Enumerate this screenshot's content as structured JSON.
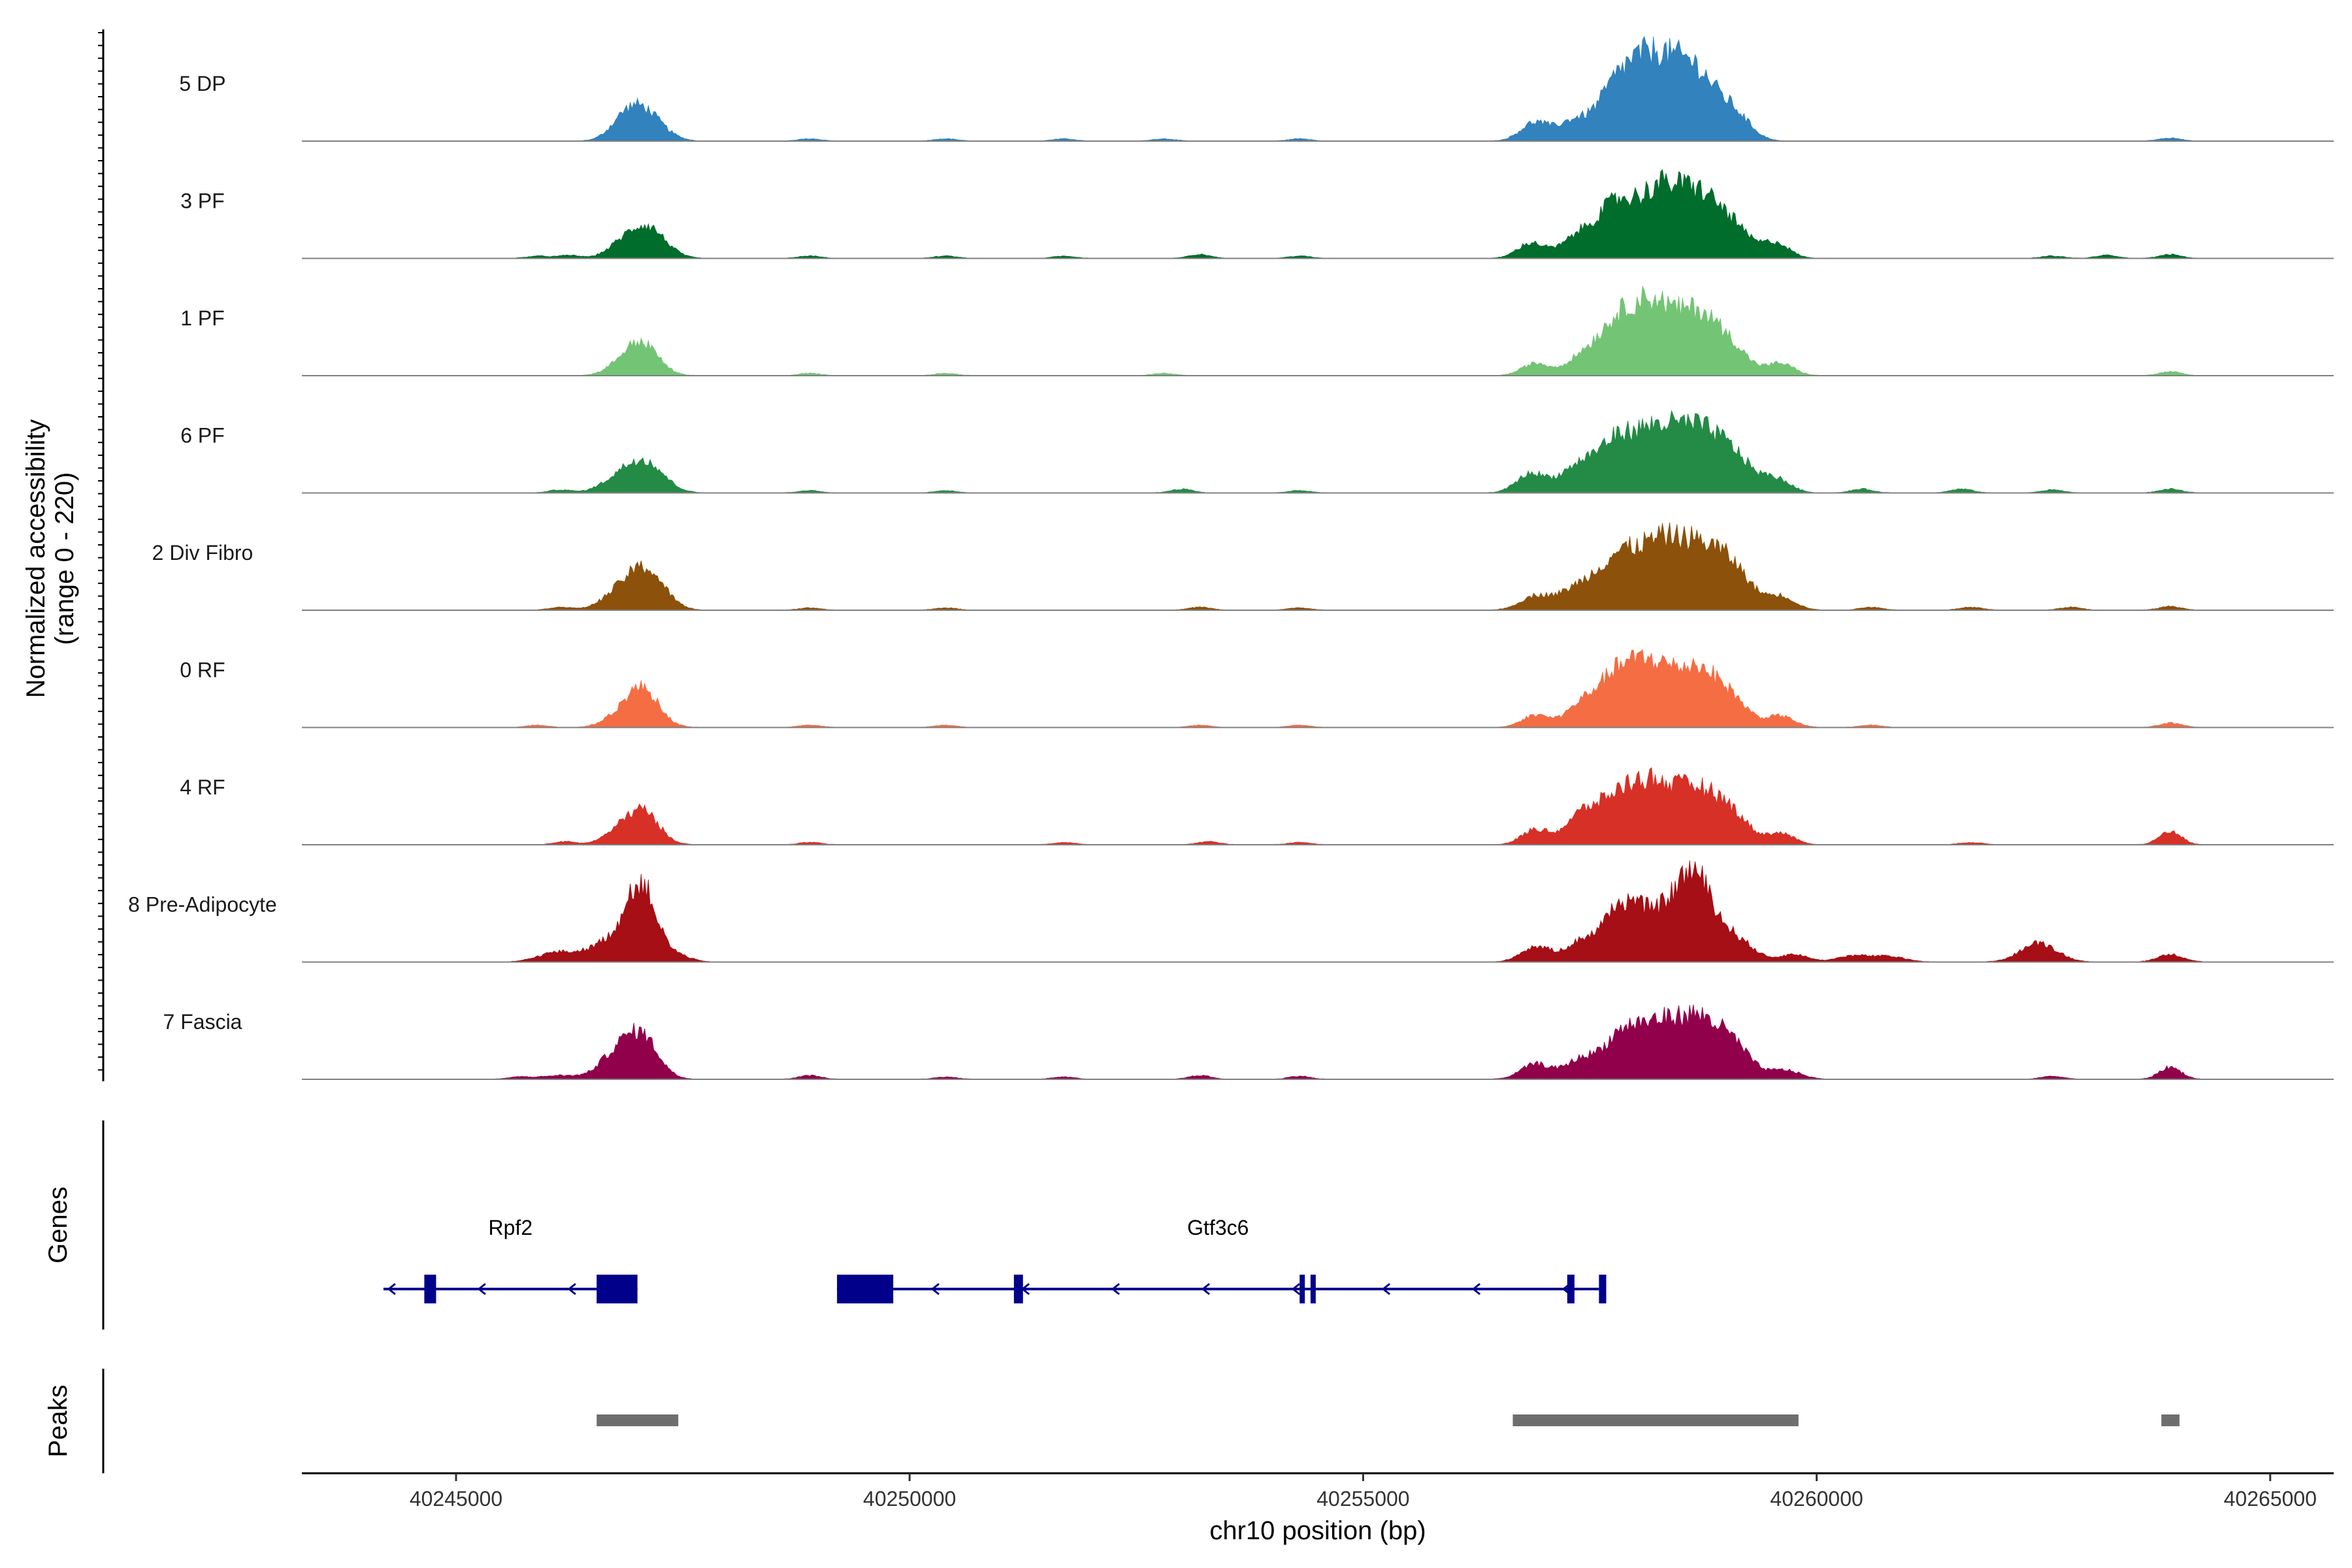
{
  "chart_data": {
    "type": "area",
    "title": "",
    "xlabel": "chr10 position (bp)",
    "ylabel": "Normalized accessibility",
    "ylabel_range": "(range 0 - 220)",
    "ylim": [
      0,
      220
    ],
    "xlim": [
      40243300,
      40265700
    ],
    "x_ticks": [
      40245000,
      40250000,
      40255000,
      40260000,
      40265000
    ],
    "x_tick_labels": [
      "40245000",
      "40250000",
      "40255000",
      "40260000",
      "40265000"
    ],
    "genes_label": "Genes",
    "peaks_label": "Peaks",
    "tracks": [
      {
        "name": "5 DP",
        "color": "#3182BD",
        "peaks": [
          [
            40246800,
            12,
            150
          ],
          [
            40246950,
            18,
            170
          ],
          [
            40247100,
            30,
            200
          ],
          [
            40256900,
            25,
            160
          ],
          [
            40257300,
            22,
            150
          ],
          [
            40257800,
            70,
            230
          ],
          [
            40258200,
            90,
            230
          ],
          [
            40258650,
            90,
            240
          ],
          [
            40259100,
            30,
            180
          ]
        ],
        "small": [
          [
            40248900,
            3
          ],
          [
            40250400,
            3
          ],
          [
            40251700,
            3
          ],
          [
            40252800,
            3
          ],
          [
            40254300,
            3
          ],
          [
            40263900,
            4
          ]
        ]
      },
      {
        "name": "3 PF",
        "color": "#006D2C",
        "peaks": [
          [
            40246800,
            12,
            160
          ],
          [
            40247100,
            42,
            200
          ],
          [
            40256850,
            20,
            150
          ],
          [
            40257400,
            30,
            200
          ],
          [
            40257800,
            65,
            200
          ],
          [
            40258250,
            80,
            220
          ],
          [
            40258700,
            80,
            240
          ],
          [
            40259100,
            30,
            190
          ],
          [
            40259550,
            20,
            150
          ]
        ],
        "small": [
          [
            40245900,
            3
          ],
          [
            40246250,
            4
          ],
          [
            40248900,
            3
          ],
          [
            40250400,
            3
          ],
          [
            40251700,
            3
          ],
          [
            40253200,
            5
          ],
          [
            40254300,
            3
          ],
          [
            40262600,
            3
          ],
          [
            40263200,
            4
          ],
          [
            40263900,
            5
          ]
        ]
      },
      {
        "name": "1 PF",
        "color": "#74C476",
        "peaks": [
          [
            40246800,
            10,
            160
          ],
          [
            40247050,
            42,
            180
          ],
          [
            40256900,
            16,
            150
          ],
          [
            40257400,
            20,
            180
          ],
          [
            40257800,
            65,
            220
          ],
          [
            40258200,
            82,
            220
          ],
          [
            40258700,
            80,
            240
          ],
          [
            40259100,
            25,
            180
          ],
          [
            40259600,
            16,
            150
          ]
        ],
        "small": [
          [
            40248900,
            3
          ],
          [
            40250400,
            3
          ],
          [
            40252800,
            3
          ],
          [
            40263900,
            5
          ]
        ]
      },
      {
        "name": "6 PF",
        "color": "#238B45",
        "peaks": [
          [
            40246800,
            18,
            200
          ],
          [
            40247100,
            38,
            200
          ],
          [
            40256850,
            25,
            160
          ],
          [
            40257350,
            30,
            200
          ],
          [
            40257800,
            65,
            230
          ],
          [
            40258250,
            70,
            230
          ],
          [
            40258700,
            75,
            240
          ],
          [
            40259100,
            40,
            200
          ],
          [
            40259550,
            18,
            160
          ]
        ],
        "small": [
          [
            40246150,
            4
          ],
          [
            40248900,
            3
          ],
          [
            40250400,
            3
          ],
          [
            40253000,
            5
          ],
          [
            40254300,
            3
          ],
          [
            40260500,
            5
          ],
          [
            40261600,
            5
          ],
          [
            40262600,
            4
          ],
          [
            40263900,
            5
          ]
        ]
      },
      {
        "name": "2 Div Fibro",
        "color": "#8C510A",
        "peaks": [
          [
            40246800,
            20,
            200
          ],
          [
            40247100,
            50,
            200
          ],
          [
            40256900,
            18,
            170
          ],
          [
            40257350,
            25,
            200
          ],
          [
            40257800,
            65,
            230
          ],
          [
            40258250,
            70,
            230
          ],
          [
            40258700,
            78,
            260
          ],
          [
            40259100,
            40,
            200
          ],
          [
            40259600,
            18,
            160
          ]
        ],
        "small": [
          [
            40246150,
            4
          ],
          [
            40248900,
            3
          ],
          [
            40250400,
            3
          ],
          [
            40253200,
            4
          ],
          [
            40254300,
            3
          ],
          [
            40260600,
            4
          ],
          [
            40261700,
            4
          ],
          [
            40262800,
            4
          ],
          [
            40263900,
            5
          ]
        ]
      },
      {
        "name": "0 RF",
        "color": "#F46D43",
        "peaks": [
          [
            40246750,
            10,
            160
          ],
          [
            40247050,
            52,
            180
          ],
          [
            40256900,
            16,
            150
          ],
          [
            40257400,
            25,
            180
          ],
          [
            40257800,
            65,
            220
          ],
          [
            40258200,
            70,
            220
          ],
          [
            40258700,
            75,
            240
          ],
          [
            40259100,
            25,
            180
          ],
          [
            40259600,
            15,
            150
          ]
        ],
        "small": [
          [
            40245900,
            3
          ],
          [
            40248900,
            3
          ],
          [
            40250400,
            3
          ],
          [
            40253200,
            3
          ],
          [
            40254300,
            3
          ],
          [
            40260600,
            3
          ],
          [
            40263900,
            6
          ]
        ]
      },
      {
        "name": "4 RF",
        "color": "#D73027",
        "peaks": [
          [
            40246750,
            12,
            160
          ],
          [
            40247050,
            45,
            180
          ],
          [
            40256900,
            20,
            150
          ],
          [
            40257400,
            35,
            180
          ],
          [
            40257800,
            55,
            220
          ],
          [
            40258200,
            70,
            230
          ],
          [
            40258700,
            70,
            240
          ],
          [
            40259100,
            30,
            180
          ],
          [
            40259600,
            15,
            150
          ]
        ],
        "small": [
          [
            40246200,
            4
          ],
          [
            40248900,
            3
          ],
          [
            40251700,
            3
          ],
          [
            40253300,
            4
          ],
          [
            40254300,
            3
          ],
          [
            40261700,
            3
          ],
          [
            40263900,
            18
          ]
        ]
      },
      {
        "name": "8 Pre-Adipocyte",
        "color": "#A50F15",
        "peaks": [
          [
            40246100,
            12,
            200
          ],
          [
            40246750,
            30,
            260
          ],
          [
            40247050,
            90,
            160
          ],
          [
            40247450,
            8,
            140
          ],
          [
            40256900,
            20,
            160
          ],
          [
            40257400,
            25,
            180
          ],
          [
            40257850,
            70,
            200
          ],
          [
            40258250,
            50,
            220
          ],
          [
            40258650,
            110,
            200
          ],
          [
            40259100,
            30,
            200
          ],
          [
            40259750,
            10,
            150
          ],
          [
            40260400,
            8,
            180
          ],
          [
            40260800,
            7,
            180
          ],
          [
            40262450,
            25,
            200
          ],
          [
            40263900,
            10,
            140
          ]
        ],
        "small": []
      },
      {
        "name": "7 Fascia",
        "color": "#91004B",
        "peaks": [
          [
            40246150,
            5,
            200
          ],
          [
            40246750,
            30,
            180
          ],
          [
            40247050,
            55,
            180
          ],
          [
            40256900,
            20,
            160
          ],
          [
            40257400,
            25,
            180
          ],
          [
            40257850,
            55,
            200
          ],
          [
            40258250,
            60,
            220
          ],
          [
            40258700,
            75,
            240
          ],
          [
            40259100,
            35,
            190
          ],
          [
            40259650,
            12,
            170
          ]
        ],
        "small": [
          [
            40245700,
            3
          ],
          [
            40248900,
            5
          ],
          [
            40250400,
            3
          ],
          [
            40251700,
            3
          ],
          [
            40253200,
            5
          ],
          [
            40254300,
            4
          ],
          [
            40262600,
            4
          ],
          [
            40263900,
            16
          ]
        ]
      }
    ],
    "genes": [
      {
        "name": "Rpf2",
        "strand": "-",
        "start": 40244200,
        "end": 40247000,
        "exons": [
          [
            40244650,
            40244780
          ],
          [
            40246550,
            40247000
          ]
        ]
      },
      {
        "name": "Gtf3c6",
        "strand": "-",
        "start": 40249200,
        "end": 40257600,
        "exons": [
          [
            40249200,
            40249820
          ],
          [
            40251150,
            40251250
          ],
          [
            40254300,
            40254350
          ],
          [
            40254420,
            40254470
          ],
          [
            40257250,
            40257330
          ],
          [
            40257600,
            40257680
          ]
        ]
      }
    ],
    "peak_regions": [
      [
        40246550,
        40247450
      ],
      [
        40256650,
        40259800
      ],
      [
        40263800,
        40264000
      ]
    ]
  }
}
